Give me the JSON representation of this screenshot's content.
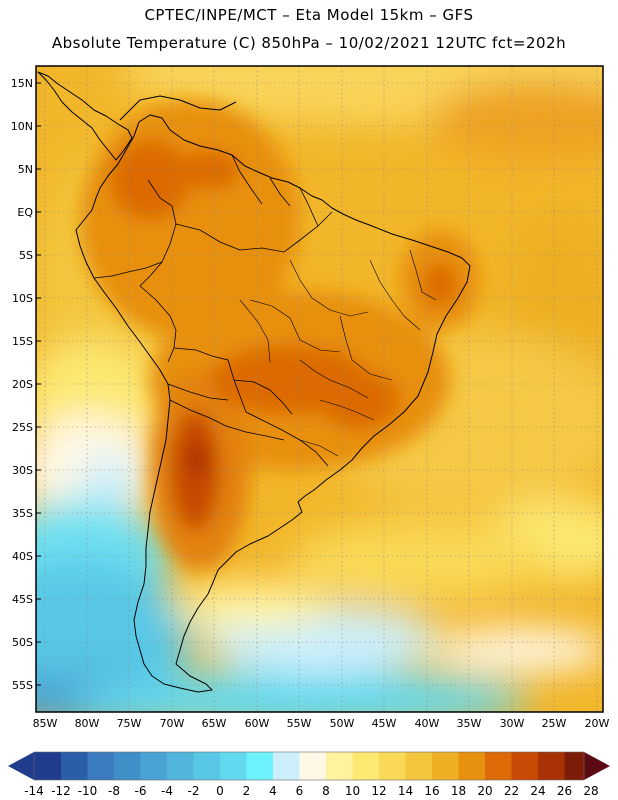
{
  "header": {
    "title_line1": "CPTEC/INPE/MCT –  Eta Model 15km – GFS",
    "title_line2": "Absolute Temperature (C) 850hPa – 10/02/2021 12UTC fct=202h"
  },
  "lat_ticks": [
    "15N",
    "10N",
    "5N",
    "EQ",
    "5S",
    "10S",
    "15S",
    "20S",
    "25S",
    "30S",
    "35S",
    "40S",
    "45S",
    "50S",
    "55S"
  ],
  "lon_ticks": [
    "85W",
    "80W",
    "75W",
    "70W",
    "65W",
    "60W",
    "55W",
    "50W",
    "45W",
    "40W",
    "35W",
    "30W",
    "25W",
    "20W"
  ],
  "colorbar": {
    "labels": [
      "-14",
      "-12",
      "-10",
      "-8",
      "-6",
      "-4",
      "-2",
      "0",
      "2",
      "4",
      "6",
      "8",
      "10",
      "12",
      "14",
      "16",
      "18",
      "20",
      "22",
      "24",
      "26",
      "28"
    ],
    "colors": [
      "#1f3d8c",
      "#2a5ea6",
      "#3a7cbf",
      "#3f8fc9",
      "#4aa3d4",
      "#52b6dc",
      "#59c8e6",
      "#63d9ef",
      "#6ef2fb",
      "#cdeffb",
      "#fff8e6",
      "#fff39f",
      "#fde872",
      "#f9d957",
      "#f3c63e",
      "#eeaf24",
      "#e8900f",
      "#dc6a06",
      "#c84a05",
      "#a83206",
      "#7e1c0a",
      "#5a0a12"
    ]
  }
}
